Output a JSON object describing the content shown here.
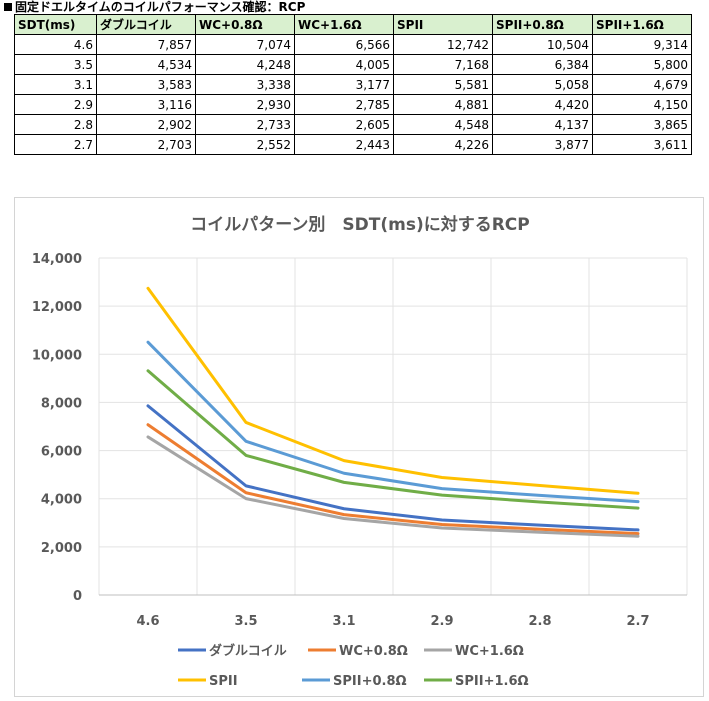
{
  "sheet_title": "固定ドエルタイムのコイルパフォーマンス確認：RCP",
  "table": {
    "headers": [
      "SDT(ms)",
      "ダブルコイル",
      "WC+0.8Ω",
      "WC+1.6Ω",
      "SPII",
      "SPII+0.8Ω",
      "SPII+1.6Ω"
    ],
    "rows": [
      [
        "4.6",
        "7,857",
        "7,074",
        "6,566",
        "12,742",
        "10,504",
        "9,314"
      ],
      [
        "3.5",
        "4,534",
        "4,248",
        "4,005",
        "7,168",
        "6,384",
        "5,800"
      ],
      [
        "3.1",
        "3,583",
        "3,338",
        "3,177",
        "5,581",
        "5,058",
        "4,679"
      ],
      [
        "2.9",
        "3,116",
        "2,930",
        "2,785",
        "4,881",
        "4,420",
        "4,150"
      ],
      [
        "2.8",
        "2,902",
        "2,733",
        "2,605",
        "4,548",
        "4,137",
        "3,865"
      ],
      [
        "2.7",
        "2,703",
        "2,552",
        "2,443",
        "4,226",
        "3,877",
        "3,611"
      ]
    ]
  },
  "chart_data": {
    "type": "line",
    "title": "コイルパターン別　SDT(ms)に対するRCP",
    "xlabel": "",
    "ylabel": "",
    "categories": [
      "4.6",
      "3.5",
      "3.1",
      "2.9",
      "2.8",
      "2.7"
    ],
    "ylim": [
      0,
      14000
    ],
    "yticks": [
      0,
      2000,
      4000,
      6000,
      8000,
      10000,
      12000,
      14000
    ],
    "ytick_labels": [
      "0",
      "2,000",
      "4,000",
      "6,000",
      "8,000",
      "10,000",
      "12,000",
      "14,000"
    ],
    "grid": true,
    "legend_position": "bottom",
    "series": [
      {
        "name": "ダブルコイル",
        "color": "#4472c4",
        "values": [
          7857,
          4534,
          3583,
          3116,
          2902,
          2703
        ]
      },
      {
        "name": "WC+0.8Ω",
        "color": "#ed7d31",
        "values": [
          7074,
          4248,
          3338,
          2930,
          2733,
          2552
        ]
      },
      {
        "name": "WC+1.6Ω",
        "color": "#a5a5a5",
        "values": [
          6566,
          4005,
          3177,
          2785,
          2605,
          2443
        ]
      },
      {
        "name": "SPII",
        "color": "#ffc000",
        "values": [
          12742,
          7168,
          5581,
          4881,
          4548,
          4226
        ]
      },
      {
        "name": "SPII+0.8Ω",
        "color": "#5b9bd5",
        "values": [
          10504,
          6384,
          5058,
          4420,
          4137,
          3877
        ]
      },
      {
        "name": "SPII+1.6Ω",
        "color": "#70ad47",
        "values": [
          9314,
          5800,
          4679,
          4150,
          3865,
          3611
        ]
      }
    ]
  }
}
